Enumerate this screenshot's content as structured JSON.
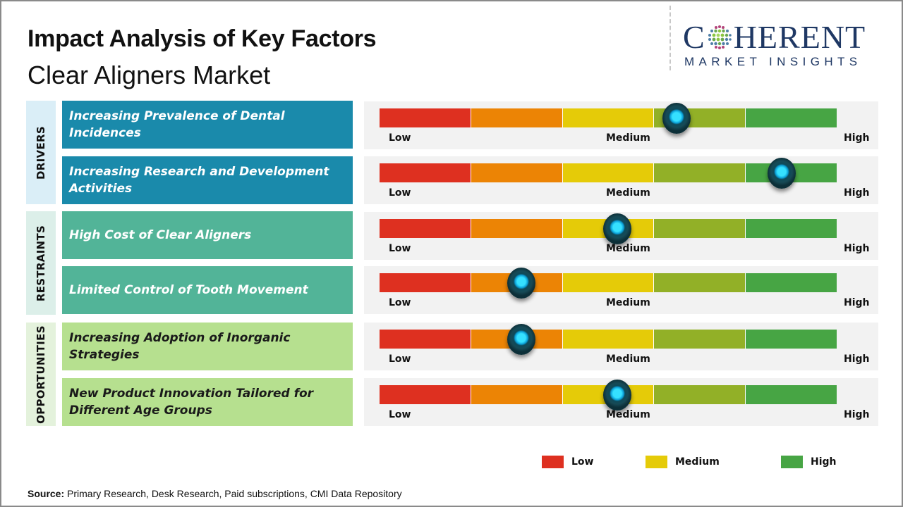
{
  "chart_data": {
    "type": "table",
    "title": "Impact Analysis of Key Factors",
    "subtitle": "Clear Aligners Market",
    "scale_labels": [
      "Low",
      "Medium",
      "High"
    ],
    "segment_colors": [
      "#de3020",
      "#ec8405",
      "#e5cb08",
      "#92b027",
      "#47a544"
    ],
    "groups": [
      {
        "name": "DRIVERS",
        "color": "#1a8aab",
        "factors": [
          {
            "label": "Increasing Prevalence  of Dental Incidences",
            "impact": 0.65
          },
          {
            "label": "Increasing Research and Development Activities",
            "impact": 0.88
          }
        ]
      },
      {
        "name": "RESTRAINTS",
        "color": "#52b498",
        "factors": [
          {
            "label": "High Cost of Clear Aligners",
            "impact": 0.52
          },
          {
            "label": "Limited Control of Tooth Movement",
            "impact": 0.31
          }
        ]
      },
      {
        "name": "OPPORTUNITIES",
        "color": "#b6e08f",
        "factors": [
          {
            "label": "Increasing Adoption of Inorganic Strategies",
            "impact": 0.31
          },
          {
            "label": "New Product Innovation Tailored for Different Age Groups",
            "impact": 0.52
          }
        ]
      }
    ],
    "legend": [
      {
        "label": "Low",
        "color": "#de3020"
      },
      {
        "label": "Medium",
        "color": "#e5cb08"
      },
      {
        "label": "High",
        "color": "#47a544"
      }
    ],
    "legend_position": "bottom-right"
  },
  "logo": {
    "main_left": "C",
    "main_right": "HERENT",
    "sub": "MARKET INSIGHTS"
  },
  "source": {
    "label": "Source:",
    "text": " Primary Research, Desk Research, Paid subscriptions, CMI Data Repository"
  }
}
